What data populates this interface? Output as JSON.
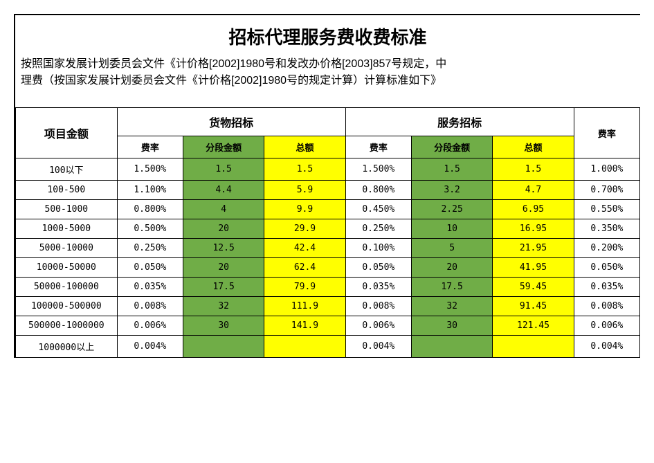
{
  "title": "招标代理服务费收费标准",
  "subtitle_line1": "按照国家发展计划委员会文件《计价格[2002]1980号和发改办价格[2003]857号规定，中",
  "subtitle_line2": "理费（按国家发展计划委员会文件《计价格[2002]1980号的规定计算）计算标准如下》",
  "headers": {
    "project_amount": "项目金额",
    "goods_bid": "货物招标",
    "service_bid": "服务招标",
    "rate": "费率",
    "segment": "分段金额",
    "total": "总额"
  },
  "colors": {
    "green": "#70ad47",
    "yellow": "#ffff00",
    "border": "#000000",
    "background": "#ffffff"
  },
  "rows": [
    {
      "range": "100以下",
      "goods_rate": "1.500%",
      "goods_seg": "1.5",
      "goods_total": "1.5",
      "service_rate": "1.500%",
      "service_seg": "1.5",
      "service_total": "1.5",
      "extra_rate": "1.000%"
    },
    {
      "range": "100-500",
      "goods_rate": "1.100%",
      "goods_seg": "4.4",
      "goods_total": "5.9",
      "service_rate": "0.800%",
      "service_seg": "3.2",
      "service_total": "4.7",
      "extra_rate": "0.700%"
    },
    {
      "range": "500-1000",
      "goods_rate": "0.800%",
      "goods_seg": "4",
      "goods_total": "9.9",
      "service_rate": "0.450%",
      "service_seg": "2.25",
      "service_total": "6.95",
      "extra_rate": "0.550%"
    },
    {
      "range": "1000-5000",
      "goods_rate": "0.500%",
      "goods_seg": "20",
      "goods_total": "29.9",
      "service_rate": "0.250%",
      "service_seg": "10",
      "service_total": "16.95",
      "extra_rate": "0.350%"
    },
    {
      "range": "5000-10000",
      "goods_rate": "0.250%",
      "goods_seg": "12.5",
      "goods_total": "42.4",
      "service_rate": "0.100%",
      "service_seg": "5",
      "service_total": "21.95",
      "extra_rate": "0.200%"
    },
    {
      "range": "10000-50000",
      "goods_rate": "0.050%",
      "goods_seg": "20",
      "goods_total": "62.4",
      "service_rate": "0.050%",
      "service_seg": "20",
      "service_total": "41.95",
      "extra_rate": "0.050%"
    },
    {
      "range": "50000-100000",
      "goods_rate": "0.035%",
      "goods_seg": "17.5",
      "goods_total": "79.9",
      "service_rate": "0.035%",
      "service_seg": "17.5",
      "service_total": "59.45",
      "extra_rate": "0.035%"
    },
    {
      "range": "100000-500000",
      "goods_rate": "0.008%",
      "goods_seg": "32",
      "goods_total": "111.9",
      "service_rate": "0.008%",
      "service_seg": "32",
      "service_total": "91.45",
      "extra_rate": "0.008%"
    },
    {
      "range": "500000-1000000",
      "goods_rate": "0.006%",
      "goods_seg": "30",
      "goods_total": "141.9",
      "service_rate": "0.006%",
      "service_seg": "30",
      "service_total": "121.45",
      "extra_rate": "0.006%"
    },
    {
      "range": "1000000以上",
      "goods_rate": "0.004%",
      "goods_seg": "",
      "goods_total": "",
      "service_rate": "0.004%",
      "service_seg": "",
      "service_total": "",
      "extra_rate": "0.004%"
    }
  ]
}
